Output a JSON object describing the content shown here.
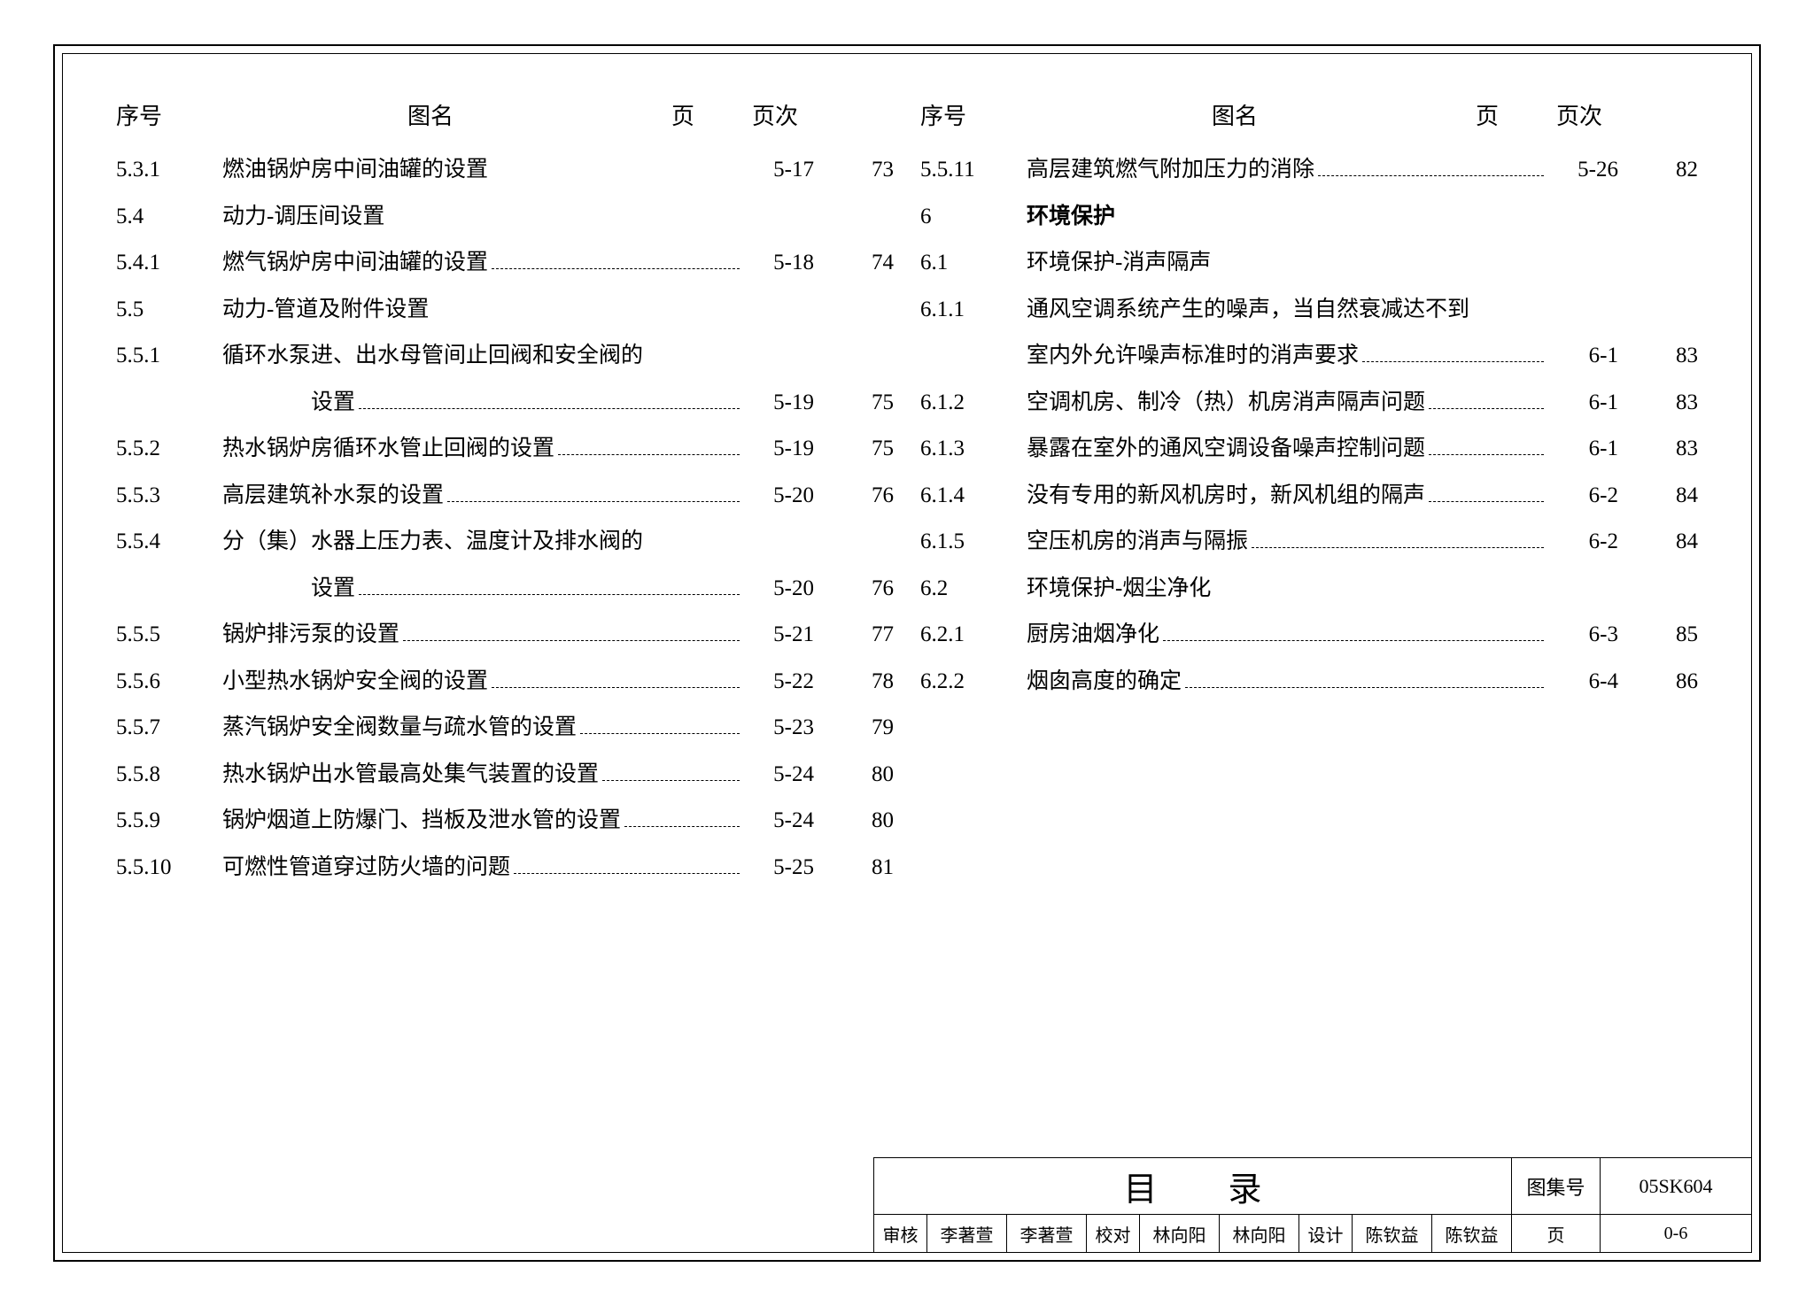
{
  "headers": {
    "num": "序号",
    "name": "图名",
    "page": "页",
    "pageIdx": "页次"
  },
  "left": [
    {
      "num": "5.3.1",
      "text": "燃油锅炉房中间油罐的设置",
      "page": "5-17",
      "idx": "73",
      "leader": false
    },
    {
      "num": "5.4",
      "text": "动力-调压间设置",
      "page": "",
      "idx": "",
      "leader": false
    },
    {
      "num": "5.4.1",
      "text": "燃气锅炉房中间油罐的设置",
      "page": "5-18",
      "idx": "74",
      "leader": true
    },
    {
      "num": "5.5",
      "text": "动力-管道及附件设置",
      "page": "",
      "idx": "",
      "leader": false
    },
    {
      "num": "5.5.1",
      "text": "循环水泵进、出水母管间止回阀和安全阀的",
      "page": "",
      "idx": "",
      "leader": false
    },
    {
      "num": "",
      "text": "设置",
      "page": "5-19",
      "idx": "75",
      "leader": true,
      "indent": true
    },
    {
      "num": "5.5.2",
      "text": "热水锅炉房循环水管止回阀的设置",
      "page": "5-19",
      "idx": "75",
      "leader": true
    },
    {
      "num": "5.5.3",
      "text": "高层建筑补水泵的设置",
      "page": "5-20",
      "idx": "76",
      "leader": true
    },
    {
      "num": "5.5.4",
      "text": "分（集）水器上压力表、温度计及排水阀的",
      "page": "",
      "idx": "",
      "leader": false
    },
    {
      "num": "",
      "text": "设置",
      "page": "5-20",
      "idx": "76",
      "leader": true,
      "indent": true
    },
    {
      "num": "5.5.5",
      "text": "锅炉排污泵的设置",
      "page": "5-21",
      "idx": "77",
      "leader": true
    },
    {
      "num": "5.5.6",
      "text": "小型热水锅炉安全阀的设置",
      "page": "5-22",
      "idx": "78",
      "leader": true
    },
    {
      "num": "5.5.7",
      "text": "蒸汽锅炉安全阀数量与疏水管的设置",
      "page": "5-23",
      "idx": "79",
      "leader": true
    },
    {
      "num": "5.5.8",
      "text": "热水锅炉出水管最高处集气装置的设置",
      "page": "5-24",
      "idx": "80",
      "leader": true
    },
    {
      "num": "5.5.9",
      "text": "锅炉烟道上防爆门、挡板及泄水管的设置",
      "page": "5-24",
      "idx": "80",
      "leader": true
    },
    {
      "num": "5.5.10",
      "text": "可燃性管道穿过防火墙的问题",
      "page": "5-25",
      "idx": "81",
      "leader": true
    }
  ],
  "right": [
    {
      "num": "5.5.11",
      "text": "高层建筑燃气附加压力的消除",
      "page": "5-26",
      "idx": "82",
      "leader": true
    },
    {
      "num": "6",
      "text": "环境保护",
      "page": "",
      "idx": "",
      "leader": false,
      "bold": true
    },
    {
      "num": "6.1",
      "text": "环境保护-消声隔声",
      "page": "",
      "idx": "",
      "leader": false
    },
    {
      "num": "6.1.1",
      "text": "通风空调系统产生的噪声，当自然衰减达不到",
      "page": "",
      "idx": "",
      "leader": false
    },
    {
      "num": "",
      "text": "室内外允许噪声标准时的消声要求",
      "page": "6-1",
      "idx": "83",
      "leader": true
    },
    {
      "num": "6.1.2",
      "text": "空调机房、制冷（热）机房消声隔声问题",
      "page": "6-1",
      "idx": "83",
      "leader": true
    },
    {
      "num": "6.1.3",
      "text": "暴露在室外的通风空调设备噪声控制问题",
      "page": "6-1",
      "idx": "83",
      "leader": true
    },
    {
      "num": "6.1.4",
      "text": "没有专用的新风机房时，新风机组的隔声",
      "page": "6-2",
      "idx": "84",
      "leader": true
    },
    {
      "num": "6.1.5",
      "text": "空压机房的消声与隔振",
      "page": "6-2",
      "idx": "84",
      "leader": true
    },
    {
      "num": "6.2",
      "text": "环境保护-烟尘净化",
      "page": "",
      "idx": "",
      "leader": false
    },
    {
      "num": "6.2.1",
      "text": "厨房油烟净化",
      "page": "6-3",
      "idx": "85",
      "leader": true
    },
    {
      "num": "6.2.2",
      "text": "烟囱高度的确定",
      "page": "6-4",
      "idx": "86",
      "leader": true
    }
  ],
  "titleBlock": {
    "title": "目录",
    "codeLabel": "图集号",
    "codeValue": "05SK604",
    "reviewLabel": "审核",
    "reviewName": "李著萱",
    "checkLabel": "校对",
    "checkName": "林向阳",
    "designLabel": "设计",
    "designName": "陈钦益",
    "pageLabel": "页",
    "pageValue": "0-6"
  }
}
